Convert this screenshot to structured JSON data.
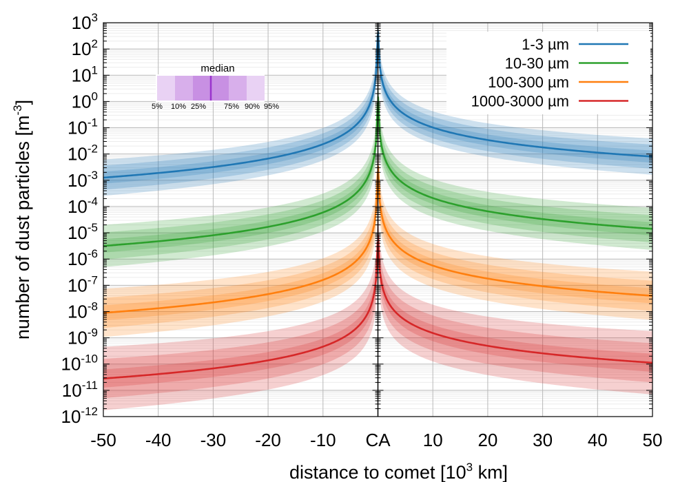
{
  "chart_data": {
    "type": "line",
    "xlabel": "distance to comet [10",
    "xlabel_sup": "3",
    "xlabel_tail": " km]",
    "ylabel": "number of dust particles [m",
    "ylabel_sup": "-3",
    "ylabel_tail": "]",
    "x_range": [
      -50,
      50
    ],
    "y_log_range": [
      -12,
      3
    ],
    "x_ticks": [
      {
        "value": -50,
        "label": "-50"
      },
      {
        "value": -40,
        "label": "-40"
      },
      {
        "value": -30,
        "label": "-30"
      },
      {
        "value": -20,
        "label": "-20"
      },
      {
        "value": -10,
        "label": "-10"
      },
      {
        "value": 0,
        "label": "CA"
      },
      {
        "value": 10,
        "label": "10"
      },
      {
        "value": 20,
        "label": "20"
      },
      {
        "value": 30,
        "label": "30"
      },
      {
        "value": 40,
        "label": "40"
      },
      {
        "value": 50,
        "label": "50"
      }
    ],
    "y_ticks": [
      {
        "exp": 3,
        "base": "10",
        "sup": "3"
      },
      {
        "exp": 2,
        "base": "10",
        "sup": "2"
      },
      {
        "exp": 1,
        "base": "10",
        "sup": "1"
      },
      {
        "exp": 0,
        "base": "10",
        "sup": "0"
      },
      {
        "exp": -1,
        "base": "10",
        "sup": "-1"
      },
      {
        "exp": -2,
        "base": "10",
        "sup": "-2"
      },
      {
        "exp": -3,
        "base": "10",
        "sup": "-3"
      },
      {
        "exp": -4,
        "base": "10",
        "sup": "-4"
      },
      {
        "exp": -5,
        "base": "10",
        "sup": "-5"
      },
      {
        "exp": -6,
        "base": "10",
        "sup": "-6"
      },
      {
        "exp": -7,
        "base": "10",
        "sup": "-7"
      },
      {
        "exp": -8,
        "base": "10",
        "sup": "-8"
      },
      {
        "exp": -9,
        "base": "10",
        "sup": "-9"
      },
      {
        "exp": -10,
        "base": "10",
        "sup": "-10"
      },
      {
        "exp": -11,
        "base": "10",
        "sup": "-11"
      },
      {
        "exp": -12,
        "base": "10",
        "sup": "-12"
      }
    ],
    "series": [
      {
        "name": "1-3 µm",
        "color": "#1f77b4",
        "median_log10_at_left": -2.9,
        "median_log10_at_right": -2.1,
        "log10_at_1_left": 0.2,
        "log10_at_1_right": 0.6,
        "band_half_widths": [
          0.6,
          0.4,
          0.2
        ]
      },
      {
        "name": "10-30 µm",
        "color": "#2ca02c",
        "median_log10_at_left": -5.5,
        "median_log10_at_right": -4.85,
        "log10_at_1_left": -2.4,
        "log10_at_1_right": -2.0,
        "band_half_widths": [
          0.7,
          0.45,
          0.22
        ]
      },
      {
        "name": "100-300 µm",
        "color": "#ff7f0e",
        "median_log10_at_left": -8.05,
        "median_log10_at_right": -7.4,
        "log10_at_1_left": -5.0,
        "log10_at_1_right": -4.6,
        "band_half_widths": [
          0.8,
          0.5,
          0.25
        ]
      },
      {
        "name": "1000-3000 µm",
        "color": "#d62728",
        "median_log10_at_left": -10.55,
        "median_log10_at_right": -9.95,
        "log10_at_1_left": -7.6,
        "log10_at_1_right": -7.2,
        "band_half_widths": [
          1.05,
          0.65,
          0.3
        ]
      }
    ],
    "inset": {
      "title": "median",
      "labels": [
        "5%",
        "10%",
        "25%",
        "75%",
        "90%",
        "95%"
      ],
      "color": "#9933cc"
    },
    "legend_position": "top-right",
    "grid": true
  }
}
